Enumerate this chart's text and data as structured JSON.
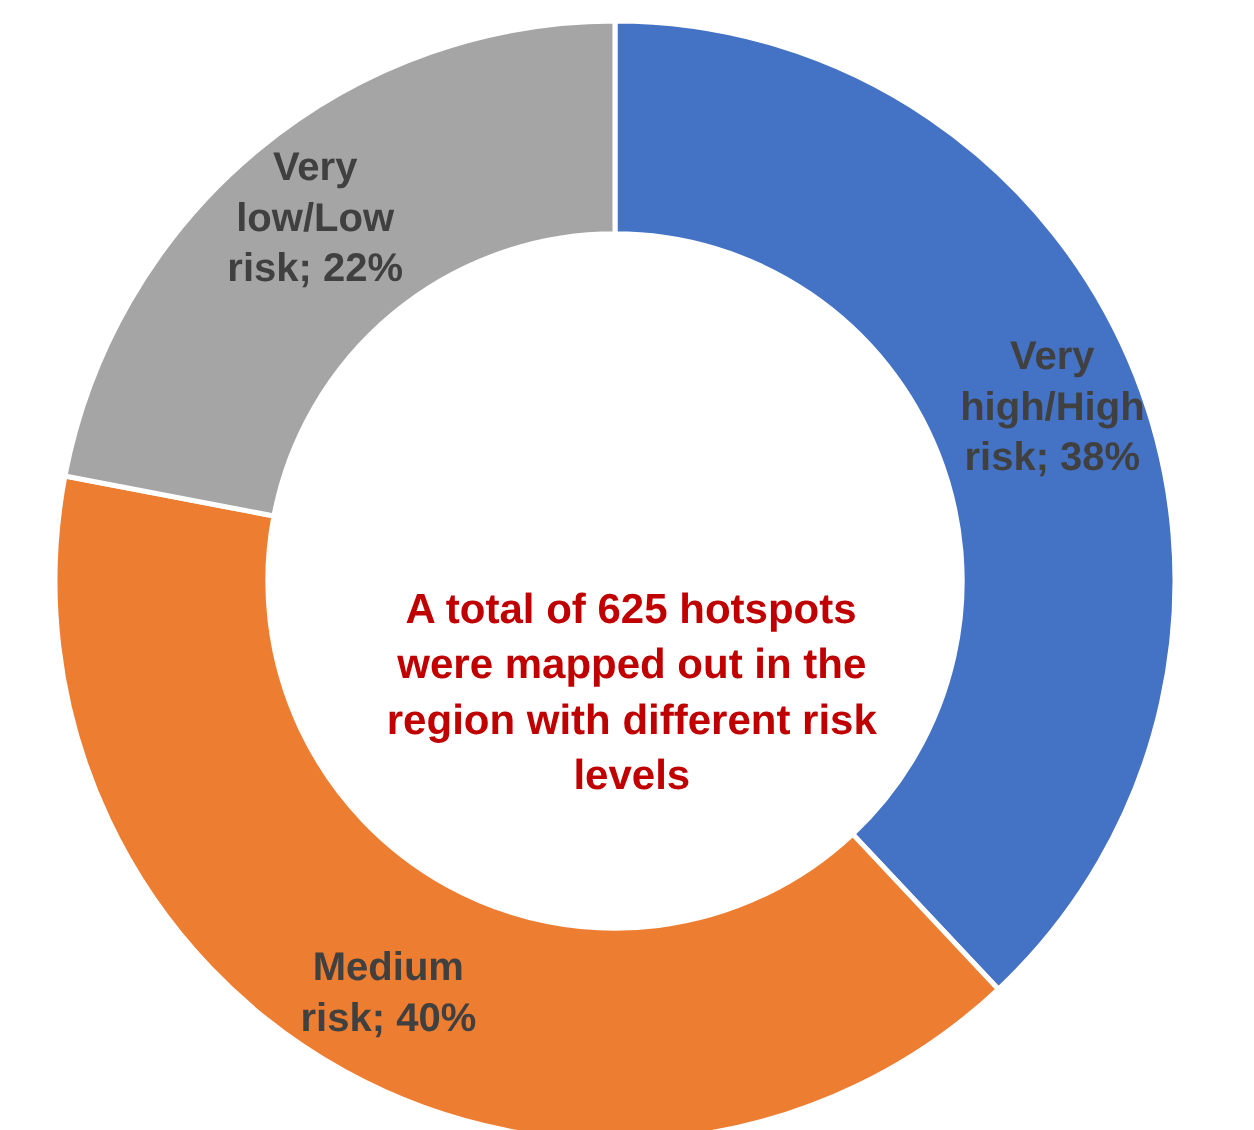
{
  "chart_data": {
    "type": "donut",
    "categories": [
      "Very high/High risk",
      "Medium risk",
      "Very low/Low risk"
    ],
    "values": [
      38,
      40,
      22
    ],
    "value_labels": [
      "38%",
      "40%",
      "22%"
    ],
    "colors": [
      "#4472c4",
      "#ed7d31",
      "#a5a5a5"
    ],
    "annotations": [
      "A total of 625 hotspots were mapped out in the region with different risk levels"
    ]
  }
}
